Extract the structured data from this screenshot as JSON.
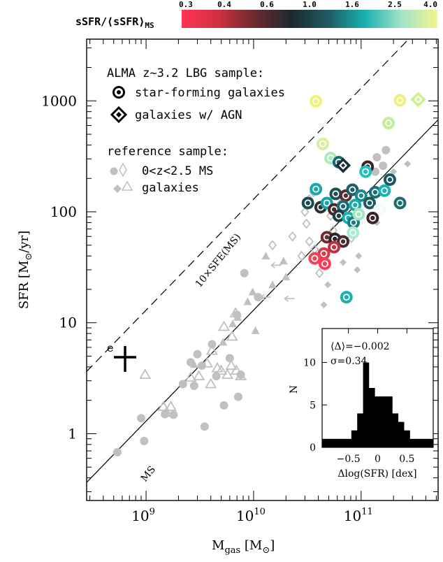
{
  "chart_data": {
    "type": "scatter",
    "x_log": true,
    "y_log": true,
    "xlim": [
      280000000,
      520000000000
    ],
    "ylim": [
      0.25,
      3600
    ],
    "xlabel": {
      "main": "M",
      "sub": "gas",
      "unit": " [M",
      "sun": "⊙",
      "close": "]"
    },
    "ylabel": {
      "main": "SFR [M",
      "sun": "⊙",
      "unit": "/yr]"
    },
    "x_ticks": [
      {
        "value": 1000000000,
        "label": "9"
      },
      {
        "value": 10000000000,
        "label": "10"
      },
      {
        "value": 100000000000,
        "label": "11"
      }
    ],
    "x_tick_base": "10",
    "y_ticks": [
      {
        "value": 1,
        "label": "1"
      },
      {
        "value": 10,
        "label": "10"
      },
      {
        "value": 100,
        "label": "100"
      },
      {
        "value": 1000,
        "label": "1000"
      }
    ],
    "colorbar": {
      "label": "sSFR/⟨sSFR⟩",
      "label_sub": "MS",
      "ticks": [
        "0.3",
        "0.4",
        "0.6",
        "1.0",
        "1.6",
        "2.5",
        "4.0"
      ],
      "stops": [
        "#ff3355",
        "#d03040",
        "#6a2a2e",
        "#1e2a30",
        "#1f5a62",
        "#18b0b0",
        "#9fe3c8",
        "#f4f48c"
      ]
    },
    "legend": {
      "title1": "ALMA z~3.2 LBG sample:",
      "sf_label": "star-forming galaxies",
      "agn_label": "galaxies w/ AGN",
      "title2": "reference sample:",
      "ref_label1": "0<z<2.5 MS",
      "ref_label2": "galaxies"
    },
    "lines": {
      "ms_label": "MS",
      "sfe_label": "10×SFE(MS)"
    },
    "error_bar_label": "e",
    "alma_sf": [
      {
        "x": 38000000000,
        "y": 990,
        "c": "#f2f27a"
      },
      {
        "x": 230000000000,
        "y": 1010,
        "c": "#f0f07e"
      },
      {
        "x": 44000000000,
        "y": 410,
        "c": "#d6f0a0"
      },
      {
        "x": 180000000000,
        "y": 630,
        "c": "#c2ee9c"
      },
      {
        "x": 52000000000,
        "y": 305,
        "c": "#a8ecb8"
      },
      {
        "x": 62000000000,
        "y": 280,
        "c": "#1a6a72"
      },
      {
        "x": 115000000000,
        "y": 255,
        "c": "#3a2226"
      },
      {
        "x": 110000000000,
        "y": 230,
        "c": "#20c0c0"
      },
      {
        "x": 185000000000,
        "y": 195,
        "c": "#1b5a62"
      },
      {
        "x": 38000000000,
        "y": 160,
        "c": "#19a8aa"
      },
      {
        "x": 58000000000,
        "y": 145,
        "c": "#1c4f58"
      },
      {
        "x": 72000000000,
        "y": 140,
        "c": "#5b2c30"
      },
      {
        "x": 83000000000,
        "y": 158,
        "c": "#1b5e66"
      },
      {
        "x": 100000000000,
        "y": 140,
        "c": "#1d8a8c"
      },
      {
        "x": 135000000000,
        "y": 150,
        "c": "#1a6f76"
      },
      {
        "x": 165000000000,
        "y": 155,
        "c": "#17b4b4"
      },
      {
        "x": 32000000000,
        "y": 120,
        "c": "#1c4a52"
      },
      {
        "x": 42000000000,
        "y": 110,
        "c": "#2a3036"
      },
      {
        "x": 48000000000,
        "y": 120,
        "c": "#19a2a6"
      },
      {
        "x": 56000000000,
        "y": 105,
        "c": "#4a282c"
      },
      {
        "x": 68000000000,
        "y": 112,
        "c": "#1b6c72"
      },
      {
        "x": 88000000000,
        "y": 115,
        "c": "#1aaaac"
      },
      {
        "x": 120000000000,
        "y": 120,
        "c": "#1a5a60"
      },
      {
        "x": 148000000000,
        "y": 105,
        "c": "#f2fbff"
      },
      {
        "x": 230000000000,
        "y": 120,
        "c": "#1c6c72"
      },
      {
        "x": 62000000000,
        "y": 92,
        "c": "#1c3e46"
      },
      {
        "x": 76000000000,
        "y": 88,
        "c": "#18b0b0"
      },
      {
        "x": 85000000000,
        "y": 80,
        "c": "#1a7a80"
      },
      {
        "x": 95000000000,
        "y": 95,
        "c": "#a0e8c0"
      },
      {
        "x": 128000000000,
        "y": 88,
        "c": "#3a2428"
      },
      {
        "x": 84000000000,
        "y": 65,
        "c": "#a8eccf"
      },
      {
        "x": 48000000000,
        "y": 59,
        "c": "#702a30"
      },
      {
        "x": 57000000000,
        "y": 57,
        "c": "#2a262c"
      },
      {
        "x": 68000000000,
        "y": 54,
        "c": "#4a2a2e"
      },
      {
        "x": 56000000000,
        "y": 48,
        "c": "#c03040"
      },
      {
        "x": 45000000000,
        "y": 42,
        "c": "#d83a48"
      },
      {
        "x": 37000000000,
        "y": 38,
        "c": "#f04456"
      },
      {
        "x": 46000000000,
        "y": 34,
        "c": "#ff3a55"
      },
      {
        "x": 73000000000,
        "y": 17,
        "c": "#19b0b0"
      }
    ],
    "alma_agn": [
      {
        "x": 340000000000,
        "y": 1030,
        "c": "#cdef90"
      },
      {
        "x": 68000000000,
        "y": 262,
        "c": "#15303a"
      }
    ],
    "ref_circles": [
      {
        "x": 540000000,
        "y": 0.68
      },
      {
        "x": 960000000,
        "y": 0.86
      },
      {
        "x": 900000000,
        "y": 1.38
      },
      {
        "x": 1500000000,
        "y": 1.5
      },
      {
        "x": 1800000000,
        "y": 1.48
      },
      {
        "x": 3500000000,
        "y": 1.16
      },
      {
        "x": 2200000000,
        "y": 2.8
      },
      {
        "x": 2600000000,
        "y": 4.4
      },
      {
        "x": 3000000000,
        "y": 5.2
      },
      {
        "x": 4100000000,
        "y": 6.4
      },
      {
        "x": 3300000000,
        "y": 4.1
      },
      {
        "x": 4500000000,
        "y": 3.3
      },
      {
        "x": 5300000000,
        "y": 1.8
      },
      {
        "x": 7200000000,
        "y": 2.15
      },
      {
        "x": 7600000000,
        "y": 3.4
      },
      {
        "x": 7000000000,
        "y": 11.8
      },
      {
        "x": 8200000000,
        "y": 28
      },
      {
        "x": 11000000000,
        "y": 17
      },
      {
        "x": 2800000000,
        "y": 2.7
      },
      {
        "x": 6000000000,
        "y": 4.8
      },
      {
        "x": 140000000000,
        "y": 310
      },
      {
        "x": 170000000000,
        "y": 360
      },
      {
        "x": 135000000000,
        "y": 230
      },
      {
        "x": 160000000000,
        "y": 260
      }
    ],
    "ref_triangles_open": [
      {
        "x": 980000000,
        "y": 3.4
      },
      {
        "x": 1450000000,
        "y": 1.75
      },
      {
        "x": 1550000000,
        "y": 1.55
      },
      {
        "x": 1700000000,
        "y": 1.75
      },
      {
        "x": 2600000000,
        "y": 3.2
      },
      {
        "x": 3100000000,
        "y": 3.3
      },
      {
        "x": 3700000000,
        "y": 4.3
      },
      {
        "x": 4100000000,
        "y": 5.6
      },
      {
        "x": 4600000000,
        "y": 3.9
      },
      {
        "x": 5000000000,
        "y": 3.7
      },
      {
        "x": 5700000000,
        "y": 3.4
      },
      {
        "x": 6200000000,
        "y": 4.1
      },
      {
        "x": 6900000000,
        "y": 3.7
      },
      {
        "x": 7600000000,
        "y": 3.3
      },
      {
        "x": 6300000000,
        "y": 7.5
      },
      {
        "x": 5300000000,
        "y": 9.2
      },
      {
        "x": 6800000000,
        "y": 12.2
      },
      {
        "x": 4000000000,
        "y": 2.8
      }
    ],
    "ref_triangles_filled": [
      {
        "x": 2800000000,
        "y": 4.2
      },
      {
        "x": 5200000000,
        "y": 6.7
      },
      {
        "x": 6400000000,
        "y": 9.8
      },
      {
        "x": 7100000000,
        "y": 11.2
      },
      {
        "x": 8800000000,
        "y": 15.5
      },
      {
        "x": 10400000000,
        "y": 8.5
      },
      {
        "x": 15000000000,
        "y": 22
      },
      {
        "x": 19000000000,
        "y": 36
      },
      {
        "x": 13000000000,
        "y": 40
      },
      {
        "x": 20000000000,
        "y": 26
      },
      {
        "x": 9800000000,
        "y": 19
      }
    ],
    "ref_diamonds_open": [
      {
        "x": 15000000000,
        "y": 50
      },
      {
        "x": 23000000000,
        "y": 60
      },
      {
        "x": 31000000000,
        "y": 78
      },
      {
        "x": 33000000000,
        "y": 54
      },
      {
        "x": 28000000000,
        "y": 40
      },
      {
        "x": 37000000000,
        "y": 46
      },
      {
        "x": 41000000000,
        "y": 28
      },
      {
        "x": 30000000000,
        "y": 100
      },
      {
        "x": 33000000000,
        "y": 130
      },
      {
        "x": 36000000000,
        "y": 150
      },
      {
        "x": 64000000000,
        "y": 118
      },
      {
        "x": 52000000000,
        "y": 92
      },
      {
        "x": 81000000000,
        "y": 58
      },
      {
        "x": 55000000000,
        "y": 68
      },
      {
        "x": 65000000000,
        "y": 110
      }
    ],
    "ref_diamonds_filled": [
      {
        "x": 49000000000,
        "y": 22
      },
      {
        "x": 45000000000,
        "y": 14.5
      },
      {
        "x": 68000000000,
        "y": 35
      },
      {
        "x": 95000000000,
        "y": 40
      },
      {
        "x": 140000000000,
        "y": 80
      },
      {
        "x": 200000000000,
        "y": 230
      },
      {
        "x": 270000000000,
        "y": 270
      },
      {
        "x": 92000000000,
        "y": 30
      }
    ],
    "ref_arrows": [
      {
        "x": 22000000000,
        "y": 16.5
      },
      {
        "x": 16500000000,
        "y": 33
      },
      {
        "x": 13200000000,
        "y": 17
      }
    ],
    "inset": {
      "type": "histogram",
      "xlabel": "Δlog(SFR) [dex]",
      "ylabel": "N",
      "stat1": "⟨Δ⟩=−0.002",
      "stat2": "σ=0.34",
      "xlim": [
        -0.95,
        0.95
      ],
      "ylim": [
        0,
        14
      ],
      "x_ticks": [
        {
          "value": -0.5,
          "label": "−0.5"
        },
        {
          "value": 0,
          "label": "0"
        },
        {
          "value": 0.5,
          "label": "0.5"
        }
      ],
      "y_ticks": [
        {
          "value": 0,
          "label": "0"
        },
        {
          "value": 5,
          "label": "5"
        },
        {
          "value": 10,
          "label": "10"
        }
      ],
      "bin_edges": [
        -0.95,
        -0.85,
        -0.75,
        -0.65,
        -0.55,
        -0.45,
        -0.35,
        -0.25,
        -0.15,
        -0.05,
        0.05,
        0.15,
        0.25,
        0.35,
        0.45,
        0.55,
        0.65,
        0.75,
        0.85,
        0.95
      ],
      "counts": [
        1,
        1,
        1,
        1,
        1,
        2,
        4,
        10,
        7,
        6,
        6,
        6,
        4,
        3,
        2,
        1,
        1,
        1,
        1
      ]
    }
  }
}
